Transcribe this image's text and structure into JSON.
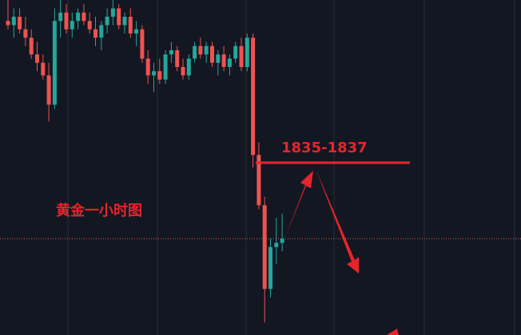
{
  "chart_data": {
    "type": "candlestick",
    "title": "黄金一小时图",
    "annotation": "1835-1837",
    "up_color": "#26a69a",
    "down_color": "#ef5350",
    "annotation_color": "#e8242b",
    "ylim": [
      1795,
      1875
    ],
    "ohlc": [
      [
        1870,
        1875,
        1868,
        1869
      ],
      [
        1869,
        1873,
        1866,
        1871
      ],
      [
        1871,
        1873,
        1867,
        1868
      ],
      [
        1868,
        1871,
        1864,
        1866
      ],
      [
        1866,
        1868,
        1861,
        1862
      ],
      [
        1862,
        1865,
        1858,
        1860
      ],
      [
        1860,
        1862,
        1856,
        1857
      ],
      [
        1857,
        1860,
        1846,
        1850
      ],
      [
        1850,
        1873,
        1849,
        1870
      ],
      [
        1870,
        1875,
        1866,
        1872
      ],
      [
        1872,
        1874,
        1867,
        1868
      ],
      [
        1868,
        1872,
        1866,
        1870
      ],
      [
        1870,
        1873,
        1868,
        1872
      ],
      [
        1872,
        1874,
        1869,
        1870
      ],
      [
        1870,
        1872,
        1867,
        1868
      ],
      [
        1868,
        1871,
        1864,
        1866
      ],
      [
        1866,
        1870,
        1863,
        1869
      ],
      [
        1869,
        1873,
        1867,
        1871
      ],
      [
        1871,
        1875,
        1869,
        1873
      ],
      [
        1873,
        1874,
        1868,
        1869
      ],
      [
        1869,
        1872,
        1867,
        1871
      ],
      [
        1871,
        1873,
        1866,
        1867
      ],
      [
        1867,
        1870,
        1864,
        1868
      ],
      [
        1868,
        1869,
        1860,
        1861
      ],
      [
        1861,
        1863,
        1855,
        1857
      ],
      [
        1857,
        1860,
        1853,
        1858
      ],
      [
        1858,
        1861,
        1855,
        1856
      ],
      [
        1856,
        1863,
        1855,
        1862
      ],
      [
        1862,
        1865,
        1860,
        1863
      ],
      [
        1863,
        1864,
        1858,
        1859
      ],
      [
        1859,
        1861,
        1856,
        1857
      ],
      [
        1857,
        1862,
        1856,
        1861
      ],
      [
        1861,
        1865,
        1860,
        1864
      ],
      [
        1864,
        1866,
        1861,
        1862
      ],
      [
        1862,
        1865,
        1860,
        1864
      ],
      [
        1864,
        1865,
        1859,
        1860
      ],
      [
        1860,
        1863,
        1857,
        1862
      ],
      [
        1862,
        1864,
        1858,
        1859
      ],
      [
        1859,
        1862,
        1857,
        1861
      ],
      [
        1861,
        1865,
        1860,
        1864
      ],
      [
        1864,
        1866,
        1858,
        1859
      ],
      [
        1859,
        1867,
        1858,
        1866
      ],
      [
        1866,
        1867,
        1835,
        1838
      ],
      [
        1838,
        1841,
        1825,
        1826
      ],
      [
        1826,
        1828,
        1798,
        1806
      ],
      [
        1806,
        1818,
        1804,
        1816
      ],
      [
        1816,
        1823,
        1812,
        1817
      ],
      [
        1817,
        1824,
        1815,
        1818
      ]
    ]
  }
}
